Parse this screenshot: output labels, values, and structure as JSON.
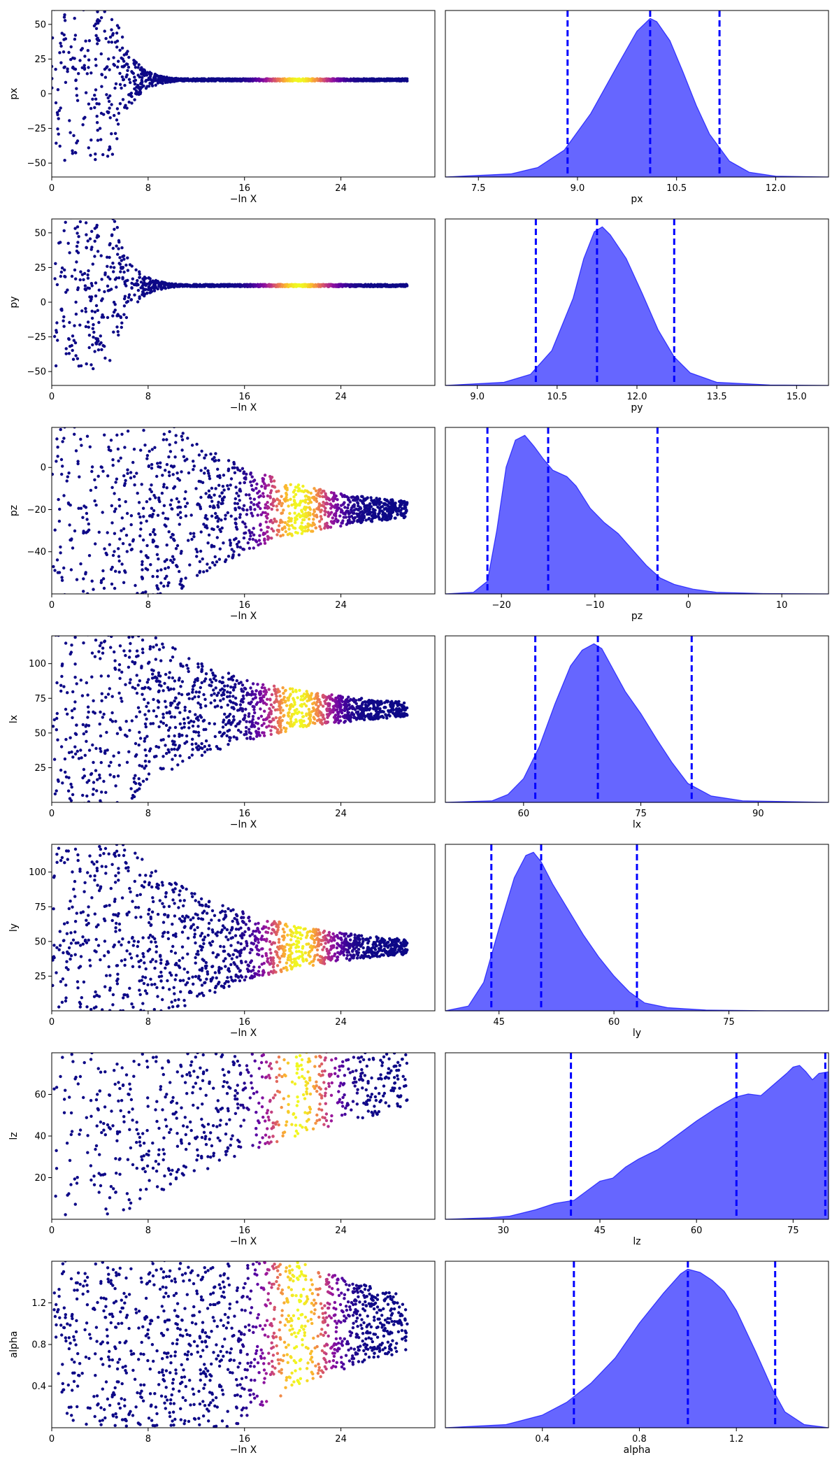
{
  "colors": {
    "posterior_fill": "#0000ff",
    "quantile_line": "#0000ff",
    "trace_colormap": [
      "#0d0887",
      "#5b02a3",
      "#9a179b",
      "#cb4678",
      "#eb7852",
      "#fbb32f",
      "#f0f921"
    ]
  },
  "chart_data": [
    {
      "type": "scatter",
      "name": "trace-px",
      "xlabel": "−ln X",
      "ylabel": "px",
      "xlim": [
        0,
        31.8
      ],
      "ylim": [
        -60,
        60
      ],
      "xticks": [
        "0",
        "8",
        "16",
        "24"
      ],
      "xtick_values": [
        0,
        8,
        16,
        24
      ],
      "yticks": [
        "−50",
        "−25",
        "0",
        "25",
        "50"
      ],
      "ytick_values": [
        -50,
        -25,
        0,
        25,
        50
      ],
      "converge_value": 10,
      "spread_at_zero": 60,
      "decay_start": 5,
      "decay_rate": 0.75,
      "floor_spread": 0.8,
      "density_peak_x": 20.5
    },
    {
      "type": "area",
      "name": "posterior-px",
      "xlabel": "px",
      "xlim": [
        7.0,
        12.8
      ],
      "xticks": [
        "7.5",
        "9.0",
        "10.5",
        "12.0"
      ],
      "xtick_values": [
        7.5,
        9.0,
        10.5,
        12.0
      ],
      "x": [
        7.0,
        8.0,
        8.4,
        8.8,
        9.2,
        9.6,
        9.9,
        10.1,
        10.2,
        10.4,
        10.6,
        10.8,
        11.0,
        11.3,
        11.6,
        12.0,
        12.8
      ],
      "y": [
        0.0,
        0.02,
        0.06,
        0.17,
        0.4,
        0.7,
        0.92,
        1.0,
        0.98,
        0.86,
        0.66,
        0.45,
        0.27,
        0.1,
        0.03,
        0.005,
        0.0
      ],
      "quantiles": [
        8.85,
        10.1,
        11.15
      ]
    },
    {
      "type": "scatter",
      "name": "trace-py",
      "xlabel": "−ln X",
      "ylabel": "py",
      "xlim": [
        0,
        31.8
      ],
      "ylim": [
        -60,
        60
      ],
      "xticks": [
        "0",
        "8",
        "16",
        "24"
      ],
      "xtick_values": [
        0,
        8,
        16,
        24
      ],
      "yticks": [
        "−50",
        "−25",
        "0",
        "25",
        "50"
      ],
      "ytick_values": [
        -50,
        -25,
        0,
        25,
        50
      ],
      "converge_value": 12,
      "spread_at_zero": 60,
      "decay_start": 5,
      "decay_rate": 0.75,
      "floor_spread": 0.8,
      "density_peak_x": 20.5
    },
    {
      "type": "area",
      "name": "posterior-py",
      "xlabel": "py",
      "xlim": [
        8.4,
        15.6
      ],
      "xticks": [
        "9.0",
        "10.5",
        "12.0",
        "13.5",
        "15.0"
      ],
      "xtick_values": [
        9.0,
        10.5,
        12.0,
        13.5,
        15.0
      ],
      "x": [
        8.4,
        9.5,
        10.0,
        10.4,
        10.8,
        11.0,
        11.2,
        11.35,
        11.5,
        11.8,
        12.1,
        12.4,
        12.7,
        13.0,
        13.5,
        14.5,
        15.6
      ],
      "y": [
        0.0,
        0.02,
        0.07,
        0.22,
        0.55,
        0.8,
        0.97,
        1.0,
        0.95,
        0.8,
        0.58,
        0.35,
        0.18,
        0.08,
        0.02,
        0.003,
        0.0
      ],
      "quantiles": [
        10.1,
        11.25,
        12.7
      ]
    },
    {
      "type": "scatter",
      "name": "trace-pz",
      "xlabel": "−ln X",
      "ylabel": "pz",
      "xlim": [
        0,
        31.8
      ],
      "ylim": [
        -60,
        19
      ],
      "xticks": [
        "0",
        "8",
        "16",
        "24"
      ],
      "xtick_values": [
        0,
        8,
        16,
        24
      ],
      "yticks": [
        "−40",
        "−20",
        "0"
      ],
      "ytick_values": [
        -40,
        -20,
        0
      ],
      "converge_value": -20,
      "spread_at_zero": 60,
      "decay_start": 7,
      "decay_rate": 0.12,
      "floor_spread": 0.6,
      "density_peak_x": 20.5
    },
    {
      "type": "area",
      "name": "posterior-pz",
      "xlabel": "pz",
      "xlim": [
        -26,
        15
      ],
      "xticks": [
        "−20",
        "−10",
        "0",
        "10"
      ],
      "xtick_values": [
        -20,
        -10,
        0,
        10
      ],
      "x": [
        -26,
        -23,
        -21.5,
        -20.5,
        -19.5,
        -18.5,
        -17.5,
        -16.5,
        -15.5,
        -14.5,
        -13.0,
        -12.0,
        -10.5,
        -9.0,
        -7.5,
        -6.0,
        -4.5,
        -3.0,
        -1.5,
        0.5,
        3,
        8,
        15
      ],
      "y": [
        0.0,
        0.01,
        0.08,
        0.4,
        0.8,
        0.97,
        1.0,
        0.93,
        0.85,
        0.78,
        0.74,
        0.68,
        0.54,
        0.45,
        0.38,
        0.28,
        0.18,
        0.1,
        0.06,
        0.03,
        0.01,
        0.002,
        0.0
      ],
      "quantiles": [
        -21.5,
        -15,
        -3.3
      ]
    },
    {
      "type": "scatter",
      "name": "trace-lx",
      "xlabel": "−ln X",
      "ylabel": "lx",
      "xlim": [
        0,
        31.8
      ],
      "ylim": [
        0,
        120
      ],
      "xticks": [
        "0",
        "8",
        "16",
        "24"
      ],
      "xtick_values": [
        0,
        8,
        16,
        24
      ],
      "yticks": [
        "25",
        "50",
        "75",
        "100"
      ],
      "ytick_values": [
        25,
        50,
        75,
        100
      ],
      "converge_value": 67,
      "spread_at_zero": 70,
      "decay_start": 6,
      "decay_rate": 0.11,
      "floor_spread": 0.6,
      "density_peak_x": 20.5
    },
    {
      "type": "area",
      "name": "posterior-lx",
      "xlabel": "lx",
      "xlim": [
        50,
        99
      ],
      "xticks": [
        "60",
        "75",
        "90"
      ],
      "xtick_values": [
        60,
        75,
        90
      ],
      "x": [
        50,
        56,
        58,
        60,
        62,
        64,
        66,
        67.5,
        69,
        70,
        71,
        73,
        75,
        77,
        79,
        81,
        84,
        88,
        99
      ],
      "y": [
        0.0,
        0.01,
        0.05,
        0.15,
        0.35,
        0.62,
        0.86,
        0.96,
        1.0,
        0.97,
        0.88,
        0.7,
        0.56,
        0.4,
        0.25,
        0.12,
        0.04,
        0.01,
        0.0
      ],
      "quantiles": [
        61.5,
        69.5,
        81.5
      ]
    },
    {
      "type": "scatter",
      "name": "trace-ly",
      "xlabel": "−ln X",
      "ylabel": "ly",
      "xlim": [
        0,
        31.8
      ],
      "ylim": [
        0,
        120
      ],
      "xticks": [
        "0",
        "8",
        "16",
        "24"
      ],
      "xtick_values": [
        0,
        8,
        16,
        24
      ],
      "yticks": [
        "25",
        "50",
        "75",
        "100"
      ],
      "ytick_values": [
        25,
        50,
        75,
        100
      ],
      "converge_value": 46,
      "spread_at_zero": 75,
      "decay_start": 6,
      "decay_rate": 0.11,
      "floor_spread": 0.6,
      "density_peak_x": 20.5
    },
    {
      "type": "area",
      "name": "posterior-ly",
      "xlabel": "ly",
      "xlim": [
        38,
        88
      ],
      "xticks": [
        "45",
        "60",
        "75"
      ],
      "xtick_values": [
        45,
        60,
        75
      ],
      "x": [
        38,
        41,
        43,
        45,
        47,
        48.5,
        49.5,
        50.5,
        52,
        54,
        56,
        58,
        60,
        62,
        64,
        67,
        72,
        80,
        88
      ],
      "y": [
        0.0,
        0.03,
        0.18,
        0.52,
        0.84,
        0.98,
        1.0,
        0.94,
        0.8,
        0.64,
        0.48,
        0.34,
        0.22,
        0.12,
        0.05,
        0.02,
        0.005,
        0.001,
        0.0
      ],
      "quantiles": [
        44,
        50.5,
        63
      ]
    },
    {
      "type": "scatter",
      "name": "trace-lz",
      "xlabel": "−ln X",
      "ylabel": "lz",
      "xlim": [
        0,
        31.8
      ],
      "ylim": [
        0,
        80
      ],
      "xticks": [
        "0",
        "8",
        "16",
        "24"
      ],
      "xtick_values": [
        0,
        8,
        16,
        24
      ],
      "yticks": [
        "20",
        "40",
        "60"
      ],
      "ytick_values": [
        20,
        40,
        60
      ],
      "converge_value": 80,
      "spread_at_zero": 80,
      "decay_start": 5,
      "decay_rate": 0.045,
      "floor_spread": 3,
      "density_peak_x": 20.5
    },
    {
      "type": "area",
      "name": "posterior-lz",
      "xlabel": "lz",
      "xlim": [
        21,
        80.5
      ],
      "xticks": [
        "30",
        "45",
        "60",
        "75"
      ],
      "xtick_values": [
        30,
        45,
        60,
        75
      ],
      "x": [
        21,
        28,
        31,
        35,
        38,
        41,
        43,
        45,
        47,
        49,
        51,
        54,
        57,
        60,
        63,
        66,
        68,
        70,
        72,
        74,
        75,
        76,
        77,
        78,
        79,
        80.5
      ],
      "y": [
        0.0,
        0.01,
        0.02,
        0.06,
        0.1,
        0.12,
        0.18,
        0.24,
        0.26,
        0.33,
        0.38,
        0.44,
        0.53,
        0.62,
        0.7,
        0.77,
        0.79,
        0.78,
        0.85,
        0.92,
        0.96,
        0.97,
        0.93,
        0.88,
        0.92,
        0.93
      ],
      "quantiles": [
        40.5,
        66.2,
        80.0
      ]
    },
    {
      "type": "scatter",
      "name": "trace-alpha",
      "xlabel": "−ln X",
      "ylabel": "alpha",
      "xlim": [
        0,
        31.8
      ],
      "ylim": [
        0,
        1.6
      ],
      "xticks": [
        "0",
        "8",
        "16",
        "24"
      ],
      "xtick_values": [
        0,
        8,
        16,
        24
      ],
      "yticks": [
        "0.4",
        "0.8",
        "1.2"
      ],
      "ytick_values": [
        0.4,
        0.8,
        1.2
      ],
      "converge_value": 1.0,
      "spread_at_zero": 1.0,
      "decay_start": 15,
      "decay_rate": 0.09,
      "floor_spread": 0.05,
      "density_peak_x": 20.5
    },
    {
      "type": "area",
      "name": "posterior-alpha",
      "xlabel": "alpha",
      "xlim": [
        0.0,
        1.58
      ],
      "xticks": [
        "0.4",
        "0.8",
        "1.2"
      ],
      "xtick_values": [
        0.4,
        0.8,
        1.2
      ],
      "x": [
        0.0,
        0.25,
        0.4,
        0.5,
        0.6,
        0.7,
        0.8,
        0.9,
        0.97,
        1.0,
        1.05,
        1.1,
        1.15,
        1.2,
        1.28,
        1.35,
        1.4,
        1.48,
        1.58
      ],
      "y": [
        0.0,
        0.02,
        0.08,
        0.16,
        0.28,
        0.44,
        0.66,
        0.85,
        0.97,
        1.0,
        0.98,
        0.93,
        0.86,
        0.74,
        0.48,
        0.24,
        0.1,
        0.02,
        0.0
      ],
      "quantiles": [
        0.53,
        1.0,
        1.36
      ]
    }
  ]
}
